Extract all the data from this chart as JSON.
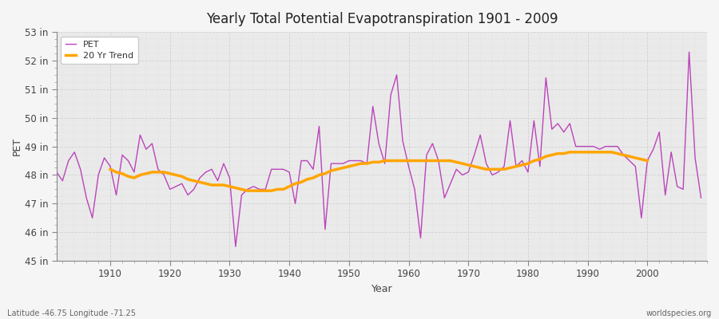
{
  "title": "Yearly Total Potential Evapotranspiration 1901 - 2009",
  "xlabel": "Year",
  "ylabel": "PET",
  "lat_lon_label": "Latitude -46.75 Longitude -71.25",
  "watermark": "worldspecies.org",
  "pet_color": "#BB44BB",
  "trend_color": "#FFA500",
  "background_color": "#EAEAEA",
  "fig_background": "#F5F5F5",
  "grid_color": "#CCCCCC",
  "ylim": [
    45,
    53
  ],
  "xlim": [
    1901,
    2010
  ],
  "ytick_vals": [
    45,
    46,
    47,
    48,
    49,
    50,
    51,
    52,
    53
  ],
  "xtick_vals": [
    1910,
    1920,
    1930,
    1940,
    1950,
    1960,
    1970,
    1980,
    1990,
    2000
  ],
  "years": [
    1901,
    1902,
    1903,
    1904,
    1905,
    1906,
    1907,
    1908,
    1909,
    1910,
    1911,
    1912,
    1913,
    1914,
    1915,
    1916,
    1917,
    1918,
    1919,
    1920,
    1921,
    1922,
    1923,
    1924,
    1925,
    1926,
    1927,
    1928,
    1929,
    1930,
    1931,
    1932,
    1933,
    1934,
    1935,
    1936,
    1937,
    1938,
    1939,
    1940,
    1941,
    1942,
    1943,
    1944,
    1945,
    1946,
    1947,
    1948,
    1949,
    1950,
    1951,
    1952,
    1953,
    1954,
    1955,
    1956,
    1957,
    1958,
    1959,
    1960,
    1961,
    1962,
    1963,
    1964,
    1965,
    1966,
    1967,
    1968,
    1969,
    1970,
    1971,
    1972,
    1973,
    1974,
    1975,
    1976,
    1977,
    1978,
    1979,
    1980,
    1981,
    1982,
    1983,
    1984,
    1985,
    1986,
    1987,
    1988,
    1989,
    1990,
    1991,
    1992,
    1993,
    1994,
    1995,
    1996,
    1997,
    1998,
    1999,
    2000,
    2001,
    2002,
    2003,
    2004,
    2005,
    2006,
    2007,
    2008,
    2009
  ],
  "pet_values": [
    48.1,
    47.8,
    48.5,
    48.8,
    48.2,
    47.2,
    46.5,
    48.0,
    48.6,
    48.3,
    47.3,
    48.7,
    48.5,
    48.1,
    49.4,
    48.9,
    49.1,
    48.2,
    48.0,
    47.5,
    47.6,
    47.7,
    47.3,
    47.5,
    47.9,
    48.1,
    48.2,
    47.8,
    48.4,
    47.9,
    45.5,
    47.3,
    47.5,
    47.6,
    47.5,
    47.5,
    48.2,
    48.2,
    48.2,
    48.1,
    47.0,
    48.5,
    48.5,
    48.2,
    49.7,
    46.1,
    48.4,
    48.4,
    48.4,
    48.5,
    48.5,
    48.5,
    48.4,
    50.4,
    49.1,
    48.4,
    50.8,
    51.5,
    49.2,
    48.3,
    47.5,
    45.8,
    48.7,
    49.1,
    48.5,
    47.2,
    47.7,
    48.2,
    48.0,
    48.1,
    48.7,
    49.4,
    48.4,
    48.0,
    48.1,
    48.3,
    49.9,
    48.3,
    48.5,
    48.1,
    49.9,
    48.3,
    51.4,
    49.6,
    49.8,
    49.5,
    49.8,
    49.0,
    49.0,
    49.0,
    49.0,
    48.9,
    49.0,
    49.0,
    49.0,
    48.7,
    48.5,
    48.3,
    46.5,
    48.5,
    48.9,
    49.5,
    47.3,
    48.8,
    47.6,
    47.5,
    52.3,
    48.6,
    47.2
  ],
  "trend_values": [
    null,
    null,
    null,
    null,
    null,
    null,
    null,
    null,
    null,
    48.2,
    48.1,
    48.05,
    47.95,
    47.9,
    48.0,
    48.05,
    48.1,
    48.1,
    48.1,
    48.05,
    48.0,
    47.95,
    47.85,
    47.8,
    47.75,
    47.7,
    47.65,
    47.65,
    47.65,
    47.6,
    47.55,
    47.5,
    47.45,
    47.45,
    47.45,
    47.45,
    47.45,
    47.5,
    47.5,
    47.6,
    47.7,
    47.75,
    47.85,
    47.9,
    48.0,
    48.05,
    48.15,
    48.2,
    48.25,
    48.3,
    48.35,
    48.4,
    48.4,
    48.45,
    48.45,
    48.5,
    48.5,
    48.5,
    48.5,
    48.5,
    48.5,
    48.5,
    48.5,
    48.5,
    48.5,
    48.5,
    48.5,
    48.45,
    48.4,
    48.35,
    48.3,
    48.25,
    48.2,
    48.2,
    48.2,
    48.2,
    48.25,
    48.3,
    48.35,
    48.4,
    48.5,
    48.55,
    48.65,
    48.7,
    48.75,
    48.75,
    48.8,
    48.8,
    48.8,
    48.8,
    48.8,
    48.8,
    48.8,
    48.8,
    48.75,
    48.7,
    48.65,
    48.6,
    48.55,
    48.5,
    null,
    null,
    null,
    null,
    null,
    null,
    null,
    null,
    null
  ]
}
